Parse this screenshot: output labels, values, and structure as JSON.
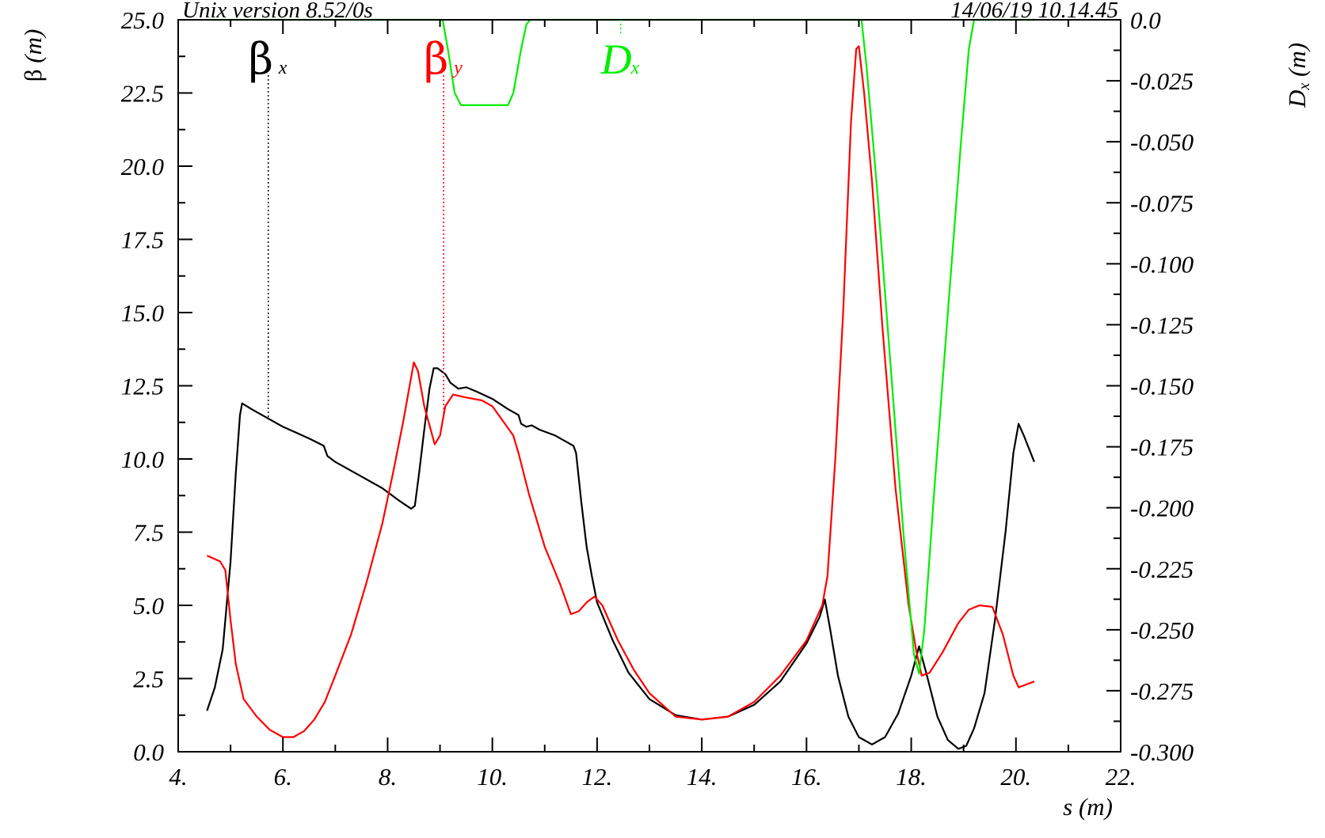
{
  "header": {
    "left": "Unix version 8.52/0s",
    "right": "14/06/19  10.14.45"
  },
  "chart_data": {
    "type": "line",
    "xlabel": "s (m)",
    "ylabel_left": {
      "symbol": "β",
      "unit": "(m)"
    },
    "ylabel_right": {
      "symbol": "D",
      "sub": "x",
      "unit": "(m)"
    },
    "xlim": [
      4,
      22
    ],
    "ylim_left": [
      0,
      25
    ],
    "ylim_right": [
      -0.3,
      0.0
    ],
    "x_ticks": [
      "4.",
      "6.",
      "8.",
      "10.",
      "12.",
      "14.",
      "16.",
      "18.",
      "20.",
      "22."
    ],
    "y_left_ticks": [
      "0.0",
      "2.5",
      "5.0",
      "7.5",
      "10.0",
      "12.5",
      "15.0",
      "17.5",
      "20.0",
      "22.5",
      "25.0"
    ],
    "y_right_ticks": [
      "-0.300",
      "-0.275",
      "-0.250",
      "-0.225",
      "-0.200",
      "-0.175",
      "-0.150",
      "-0.125",
      "-0.100",
      "-0.075",
      "-0.050",
      "-0.025",
      "0.0"
    ],
    "grid": false,
    "series": [
      {
        "name": "β",
        "sub": "x",
        "color": "#000000",
        "axis": "left",
        "legend_x": 5.72,
        "points": [
          [
            4.55,
            1.4
          ],
          [
            4.7,
            2.2
          ],
          [
            4.85,
            3.5
          ],
          [
            5.0,
            6.5
          ],
          [
            5.1,
            9.5
          ],
          [
            5.18,
            11.5
          ],
          [
            5.22,
            11.9
          ],
          [
            5.4,
            11.7
          ],
          [
            5.7,
            11.4
          ],
          [
            6.0,
            11.1
          ],
          [
            6.5,
            10.7
          ],
          [
            6.78,
            10.45
          ],
          [
            6.85,
            10.1
          ],
          [
            7.0,
            9.9
          ],
          [
            7.5,
            9.4
          ],
          [
            7.9,
            9.0
          ],
          [
            8.2,
            8.6
          ],
          [
            8.45,
            8.3
          ],
          [
            8.52,
            8.4
          ],
          [
            8.6,
            9.5
          ],
          [
            8.7,
            11.0
          ],
          [
            8.8,
            12.4
          ],
          [
            8.88,
            13.1
          ],
          [
            8.95,
            13.1
          ],
          [
            9.1,
            12.9
          ],
          [
            9.2,
            12.6
          ],
          [
            9.35,
            12.4
          ],
          [
            9.5,
            12.45
          ],
          [
            9.7,
            12.3
          ],
          [
            10.0,
            12.05
          ],
          [
            10.3,
            11.7
          ],
          [
            10.5,
            11.5
          ],
          [
            10.55,
            11.2
          ],
          [
            10.65,
            11.1
          ],
          [
            10.75,
            11.15
          ],
          [
            10.9,
            11.0
          ],
          [
            11.2,
            10.8
          ],
          [
            11.4,
            10.6
          ],
          [
            11.55,
            10.45
          ],
          [
            11.6,
            10.2
          ],
          [
            11.7,
            8.5
          ],
          [
            11.8,
            7.0
          ],
          [
            11.9,
            6.0
          ],
          [
            12.0,
            5.1
          ],
          [
            12.3,
            3.8
          ],
          [
            12.6,
            2.7
          ],
          [
            13.0,
            1.8
          ],
          [
            13.5,
            1.25
          ],
          [
            14.0,
            1.1
          ],
          [
            14.5,
            1.2
          ],
          [
            15.0,
            1.6
          ],
          [
            15.5,
            2.4
          ],
          [
            16.0,
            3.7
          ],
          [
            16.25,
            4.6
          ],
          [
            16.35,
            5.2
          ],
          [
            16.45,
            4.2
          ],
          [
            16.6,
            2.6
          ],
          [
            16.8,
            1.2
          ],
          [
            17.0,
            0.5
          ],
          [
            17.25,
            0.25
          ],
          [
            17.5,
            0.5
          ],
          [
            17.75,
            1.3
          ],
          [
            18.0,
            2.6
          ],
          [
            18.15,
            3.6
          ],
          [
            18.3,
            2.6
          ],
          [
            18.5,
            1.2
          ],
          [
            18.7,
            0.4
          ],
          [
            18.9,
            0.1
          ],
          [
            19.05,
            0.2
          ],
          [
            19.2,
            0.8
          ],
          [
            19.4,
            2.0
          ],
          [
            19.6,
            4.5
          ],
          [
            19.8,
            7.5
          ],
          [
            19.95,
            10.2
          ],
          [
            20.05,
            11.2
          ],
          [
            20.15,
            10.8
          ],
          [
            20.35,
            9.9
          ]
        ]
      },
      {
        "name": "β",
        "sub": "y",
        "color": "#ff0000",
        "axis": "left",
        "legend_x": 9.07,
        "points": [
          [
            4.55,
            6.7
          ],
          [
            4.8,
            6.5
          ],
          [
            4.9,
            6.2
          ],
          [
            5.0,
            4.5
          ],
          [
            5.1,
            3.0
          ],
          [
            5.25,
            1.8
          ],
          [
            5.5,
            1.2
          ],
          [
            5.75,
            0.75
          ],
          [
            6.0,
            0.5
          ],
          [
            6.2,
            0.5
          ],
          [
            6.4,
            0.7
          ],
          [
            6.6,
            1.1
          ],
          [
            6.8,
            1.7
          ],
          [
            7.0,
            2.6
          ],
          [
            7.3,
            4.0
          ],
          [
            7.6,
            5.8
          ],
          [
            7.9,
            7.8
          ],
          [
            8.1,
            9.5
          ],
          [
            8.3,
            11.3
          ],
          [
            8.45,
            12.8
          ],
          [
            8.5,
            13.3
          ],
          [
            8.58,
            13.0
          ],
          [
            8.7,
            11.8
          ],
          [
            8.9,
            10.5
          ],
          [
            9.0,
            10.8
          ],
          [
            9.1,
            11.8
          ],
          [
            9.25,
            12.2
          ],
          [
            9.5,
            12.1
          ],
          [
            9.8,
            12.0
          ],
          [
            10.0,
            11.8
          ],
          [
            10.2,
            11.3
          ],
          [
            10.4,
            10.8
          ],
          [
            10.5,
            10.2
          ],
          [
            10.7,
            8.8
          ],
          [
            11.0,
            7.0
          ],
          [
            11.3,
            5.7
          ],
          [
            11.5,
            4.7
          ],
          [
            11.65,
            4.8
          ],
          [
            11.8,
            5.1
          ],
          [
            11.95,
            5.3
          ],
          [
            12.1,
            5.0
          ],
          [
            12.4,
            3.8
          ],
          [
            12.7,
            2.8
          ],
          [
            13.0,
            2.0
          ],
          [
            13.5,
            1.2
          ],
          [
            14.0,
            1.1
          ],
          [
            14.5,
            1.2
          ],
          [
            15.0,
            1.7
          ],
          [
            15.5,
            2.6
          ],
          [
            16.0,
            3.8
          ],
          [
            16.3,
            5.0
          ],
          [
            16.4,
            6.0
          ],
          [
            16.55,
            10.0
          ],
          [
            16.7,
            15.0
          ],
          [
            16.85,
            21.5
          ],
          [
            16.95,
            24.0
          ],
          [
            17.0,
            24.1
          ],
          [
            17.1,
            22.5
          ],
          [
            17.25,
            19.5
          ],
          [
            17.45,
            14.5
          ],
          [
            17.7,
            9.0
          ],
          [
            17.95,
            5.0
          ],
          [
            18.1,
            3.4
          ],
          [
            18.2,
            2.6
          ],
          [
            18.35,
            2.7
          ],
          [
            18.6,
            3.4
          ],
          [
            18.9,
            4.4
          ],
          [
            19.1,
            4.85
          ],
          [
            19.3,
            5.0
          ],
          [
            19.55,
            4.95
          ],
          [
            19.75,
            4.0
          ],
          [
            19.95,
            2.6
          ],
          [
            20.05,
            2.2
          ],
          [
            20.35,
            2.4
          ]
        ]
      },
      {
        "name": "D",
        "sub": "x",
        "color": "#00ee00",
        "axis": "right",
        "legend_x": 12.45,
        "points": [
          [
            4.55,
            0.0
          ],
          [
            9.05,
            0.0
          ],
          [
            9.15,
            -0.012
          ],
          [
            9.28,
            -0.03
          ],
          [
            9.4,
            -0.035
          ],
          [
            10.3,
            -0.035
          ],
          [
            10.4,
            -0.03
          ],
          [
            10.55,
            -0.012
          ],
          [
            10.65,
            -0.002
          ],
          [
            10.72,
            0.0
          ],
          [
            17.05,
            0.0
          ],
          [
            17.15,
            -0.02
          ],
          [
            17.35,
            -0.07
          ],
          [
            17.6,
            -0.14
          ],
          [
            17.85,
            -0.21
          ],
          [
            18.05,
            -0.26
          ],
          [
            18.15,
            -0.268
          ],
          [
            18.25,
            -0.25
          ],
          [
            18.45,
            -0.19
          ],
          [
            18.7,
            -0.12
          ],
          [
            18.95,
            -0.05
          ],
          [
            19.1,
            -0.012
          ],
          [
            19.2,
            0.0
          ],
          [
            20.35,
            0.0
          ]
        ]
      }
    ]
  }
}
